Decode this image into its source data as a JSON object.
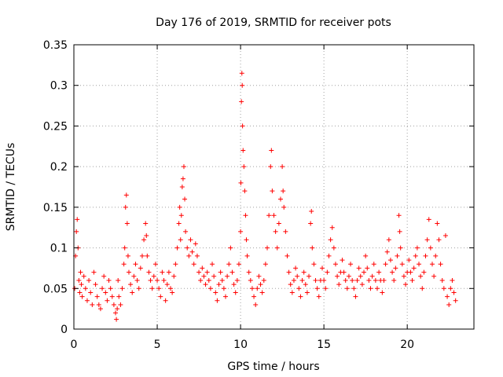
{
  "chart_data": {
    "type": "scatter",
    "title": "Day 176 of 2019, SRMTID for receiver pots",
    "xlabel": "GPS time / hours",
    "ylabel": "SRMTID / TECUs",
    "xlim": [
      0,
      24
    ],
    "ylim": [
      0,
      0.35
    ],
    "xticks": [
      0,
      5,
      10,
      15,
      20
    ],
    "yticks": [
      0,
      0.05,
      0.1,
      0.15,
      0.2,
      0.25,
      0.3,
      0.35
    ],
    "xtick_labels": [
      "0",
      "5",
      "10",
      "15",
      "20"
    ],
    "ytick_labels": [
      "0",
      "0.05",
      "0.1",
      "0.15",
      "0.2",
      "0.25",
      "0.3",
      "0.35"
    ],
    "grid": true,
    "marker": "plus",
    "color": "#ff0000",
    "series": [
      {
        "name": "SRMTID",
        "points": [
          [
            0.05,
            0.05
          ],
          [
            0.1,
            0.09
          ],
          [
            0.15,
            0.12
          ],
          [
            0.2,
            0.135
          ],
          [
            0.25,
            0.1
          ],
          [
            0.3,
            0.06
          ],
          [
            0.35,
            0.045
          ],
          [
            0.4,
            0.07
          ],
          [
            0.45,
            0.055
          ],
          [
            0.5,
            0.04
          ],
          [
            0.6,
            0.065
          ],
          [
            0.7,
            0.05
          ],
          [
            0.8,
            0.035
          ],
          [
            0.9,
            0.06
          ],
          [
            1.0,
            0.045
          ],
          [
            1.1,
            0.03
          ],
          [
            1.2,
            0.07
          ],
          [
            1.3,
            0.055
          ],
          [
            1.4,
            0.04
          ],
          [
            1.5,
            0.03
          ],
          [
            1.6,
            0.025
          ],
          [
            1.7,
            0.05
          ],
          [
            1.8,
            0.065
          ],
          [
            1.9,
            0.045
          ],
          [
            2.0,
            0.035
          ],
          [
            2.1,
            0.06
          ],
          [
            2.2,
            0.05
          ],
          [
            2.3,
            0.04
          ],
          [
            2.4,
            0.03
          ],
          [
            2.5,
            0.02
          ],
          [
            2.55,
            0.012
          ],
          [
            2.6,
            0.025
          ],
          [
            2.65,
            0.06
          ],
          [
            2.7,
            0.04
          ],
          [
            2.8,
            0.03
          ],
          [
            2.9,
            0.05
          ],
          [
            3.0,
            0.08
          ],
          [
            3.05,
            0.1
          ],
          [
            3.1,
            0.15
          ],
          [
            3.15,
            0.165
          ],
          [
            3.2,
            0.13
          ],
          [
            3.25,
            0.09
          ],
          [
            3.3,
            0.07
          ],
          [
            3.4,
            0.055
          ],
          [
            3.5,
            0.045
          ],
          [
            3.6,
            0.065
          ],
          [
            3.7,
            0.08
          ],
          [
            3.8,
            0.06
          ],
          [
            3.9,
            0.05
          ],
          [
            4.0,
            0.075
          ],
          [
            4.1,
            0.09
          ],
          [
            4.2,
            0.11
          ],
          [
            4.3,
            0.13
          ],
          [
            4.35,
            0.115
          ],
          [
            4.4,
            0.09
          ],
          [
            4.5,
            0.07
          ],
          [
            4.6,
            0.06
          ],
          [
            4.7,
            0.05
          ],
          [
            4.8,
            0.065
          ],
          [
            4.9,
            0.08
          ],
          [
            5.0,
            0.06
          ],
          [
            5.1,
            0.05
          ],
          [
            5.2,
            0.04
          ],
          [
            5.3,
            0.07
          ],
          [
            5.4,
            0.06
          ],
          [
            5.5,
            0.035
          ],
          [
            5.6,
            0.055
          ],
          [
            5.7,
            0.07
          ],
          [
            5.8,
            0.05
          ],
          [
            5.9,
            0.045
          ],
          [
            6.0,
            0.065
          ],
          [
            6.1,
            0.08
          ],
          [
            6.2,
            0.1
          ],
          [
            6.3,
            0.13
          ],
          [
            6.35,
            0.15
          ],
          [
            6.4,
            0.11
          ],
          [
            6.45,
            0.14
          ],
          [
            6.5,
            0.175
          ],
          [
            6.55,
            0.185
          ],
          [
            6.6,
            0.2
          ],
          [
            6.65,
            0.16
          ],
          [
            6.7,
            0.12
          ],
          [
            6.8,
            0.1
          ],
          [
            6.9,
            0.09
          ],
          [
            7.0,
            0.11
          ],
          [
            7.1,
            0.095
          ],
          [
            7.2,
            0.08
          ],
          [
            7.3,
            0.105
          ],
          [
            7.4,
            0.09
          ],
          [
            7.5,
            0.07
          ],
          [
            7.6,
            0.06
          ],
          [
            7.7,
            0.075
          ],
          [
            7.8,
            0.065
          ],
          [
            7.9,
            0.055
          ],
          [
            8.0,
            0.07
          ],
          [
            8.1,
            0.06
          ],
          [
            8.2,
            0.05
          ],
          [
            8.3,
            0.08
          ],
          [
            8.4,
            0.065
          ],
          [
            8.5,
            0.045
          ],
          [
            8.6,
            0.035
          ],
          [
            8.7,
            0.055
          ],
          [
            8.8,
            0.07
          ],
          [
            8.9,
            0.06
          ],
          [
            9.0,
            0.05
          ],
          [
            9.1,
            0.04
          ],
          [
            9.2,
            0.065
          ],
          [
            9.3,
            0.08
          ],
          [
            9.4,
            0.1
          ],
          [
            9.5,
            0.07
          ],
          [
            9.6,
            0.055
          ],
          [
            9.7,
            0.045
          ],
          [
            9.8,
            0.06
          ],
          [
            9.9,
            0.08
          ],
          [
            10.0,
            0.12
          ],
          [
            10.02,
            0.18
          ],
          [
            10.05,
            0.28
          ],
          [
            10.08,
            0.315
          ],
          [
            10.1,
            0.3
          ],
          [
            10.12,
            0.25
          ],
          [
            10.15,
            0.22
          ],
          [
            10.2,
            0.2
          ],
          [
            10.25,
            0.17
          ],
          [
            10.3,
            0.14
          ],
          [
            10.35,
            0.11
          ],
          [
            10.4,
            0.09
          ],
          [
            10.5,
            0.07
          ],
          [
            10.6,
            0.06
          ],
          [
            10.7,
            0.05
          ],
          [
            10.8,
            0.04
          ],
          [
            10.9,
            0.03
          ],
          [
            11.0,
            0.05
          ],
          [
            11.1,
            0.065
          ],
          [
            11.2,
            0.055
          ],
          [
            11.3,
            0.045
          ],
          [
            11.4,
            0.06
          ],
          [
            11.5,
            0.08
          ],
          [
            11.6,
            0.1
          ],
          [
            11.7,
            0.14
          ],
          [
            11.8,
            0.2
          ],
          [
            11.85,
            0.22
          ],
          [
            11.9,
            0.17
          ],
          [
            12.0,
            0.14
          ],
          [
            12.1,
            0.12
          ],
          [
            12.2,
            0.1
          ],
          [
            12.3,
            0.13
          ],
          [
            12.4,
            0.16
          ],
          [
            12.5,
            0.2
          ],
          [
            12.55,
            0.17
          ],
          [
            12.6,
            0.15
          ],
          [
            12.7,
            0.12
          ],
          [
            12.8,
            0.09
          ],
          [
            12.9,
            0.07
          ],
          [
            13.0,
            0.055
          ],
          [
            13.1,
            0.045
          ],
          [
            13.2,
            0.06
          ],
          [
            13.3,
            0.075
          ],
          [
            13.4,
            0.065
          ],
          [
            13.5,
            0.05
          ],
          [
            13.6,
            0.04
          ],
          [
            13.7,
            0.06
          ],
          [
            13.8,
            0.07
          ],
          [
            13.9,
            0.055
          ],
          [
            14.0,
            0.045
          ],
          [
            14.1,
            0.065
          ],
          [
            14.2,
            0.13
          ],
          [
            14.25,
            0.145
          ],
          [
            14.3,
            0.1
          ],
          [
            14.4,
            0.08
          ],
          [
            14.5,
            0.06
          ],
          [
            14.6,
            0.05
          ],
          [
            14.7,
            0.04
          ],
          [
            14.8,
            0.06
          ],
          [
            14.9,
            0.075
          ],
          [
            15.0,
            0.06
          ],
          [
            15.1,
            0.05
          ],
          [
            15.2,
            0.07
          ],
          [
            15.3,
            0.09
          ],
          [
            15.4,
            0.11
          ],
          [
            15.5,
            0.125
          ],
          [
            15.6,
            0.1
          ],
          [
            15.7,
            0.08
          ],
          [
            15.8,
            0.065
          ],
          [
            15.9,
            0.055
          ],
          [
            16.0,
            0.07
          ],
          [
            16.1,
            0.085
          ],
          [
            16.2,
            0.07
          ],
          [
            16.3,
            0.06
          ],
          [
            16.4,
            0.05
          ],
          [
            16.5,
            0.065
          ],
          [
            16.6,
            0.08
          ],
          [
            16.7,
            0.06
          ],
          [
            16.8,
            0.05
          ],
          [
            16.9,
            0.04
          ],
          [
            17.0,
            0.06
          ],
          [
            17.1,
            0.075
          ],
          [
            17.2,
            0.065
          ],
          [
            17.3,
            0.055
          ],
          [
            17.4,
            0.07
          ],
          [
            17.5,
            0.09
          ],
          [
            17.6,
            0.075
          ],
          [
            17.7,
            0.06
          ],
          [
            17.8,
            0.05
          ],
          [
            17.9,
            0.065
          ],
          [
            18.0,
            0.08
          ],
          [
            18.1,
            0.06
          ],
          [
            18.2,
            0.05
          ],
          [
            18.3,
            0.07
          ],
          [
            18.4,
            0.06
          ],
          [
            18.5,
            0.045
          ],
          [
            18.6,
            0.06
          ],
          [
            18.7,
            0.08
          ],
          [
            18.8,
            0.095
          ],
          [
            18.9,
            0.11
          ],
          [
            19.0,
            0.085
          ],
          [
            19.1,
            0.07
          ],
          [
            19.2,
            0.06
          ],
          [
            19.3,
            0.075
          ],
          [
            19.4,
            0.09
          ],
          [
            19.5,
            0.14
          ],
          [
            19.55,
            0.12
          ],
          [
            19.6,
            0.1
          ],
          [
            19.7,
            0.08
          ],
          [
            19.8,
            0.065
          ],
          [
            19.9,
            0.055
          ],
          [
            20.0,
            0.07
          ],
          [
            20.1,
            0.085
          ],
          [
            20.2,
            0.07
          ],
          [
            20.3,
            0.06
          ],
          [
            20.4,
            0.075
          ],
          [
            20.5,
            0.09
          ],
          [
            20.6,
            0.1
          ],
          [
            20.7,
            0.08
          ],
          [
            20.8,
            0.065
          ],
          [
            20.9,
            0.05
          ],
          [
            21.0,
            0.07
          ],
          [
            21.1,
            0.09
          ],
          [
            21.2,
            0.11
          ],
          [
            21.3,
            0.135
          ],
          [
            21.4,
            0.1
          ],
          [
            21.5,
            0.08
          ],
          [
            21.6,
            0.065
          ],
          [
            21.7,
            0.09
          ],
          [
            21.8,
            0.13
          ],
          [
            21.9,
            0.11
          ],
          [
            22.0,
            0.08
          ],
          [
            22.1,
            0.06
          ],
          [
            22.2,
            0.05
          ],
          [
            22.3,
            0.115
          ],
          [
            22.4,
            0.04
          ],
          [
            22.5,
            0.03
          ],
          [
            22.6,
            0.05
          ],
          [
            22.7,
            0.06
          ],
          [
            22.8,
            0.045
          ],
          [
            22.9,
            0.035
          ]
        ]
      }
    ]
  }
}
